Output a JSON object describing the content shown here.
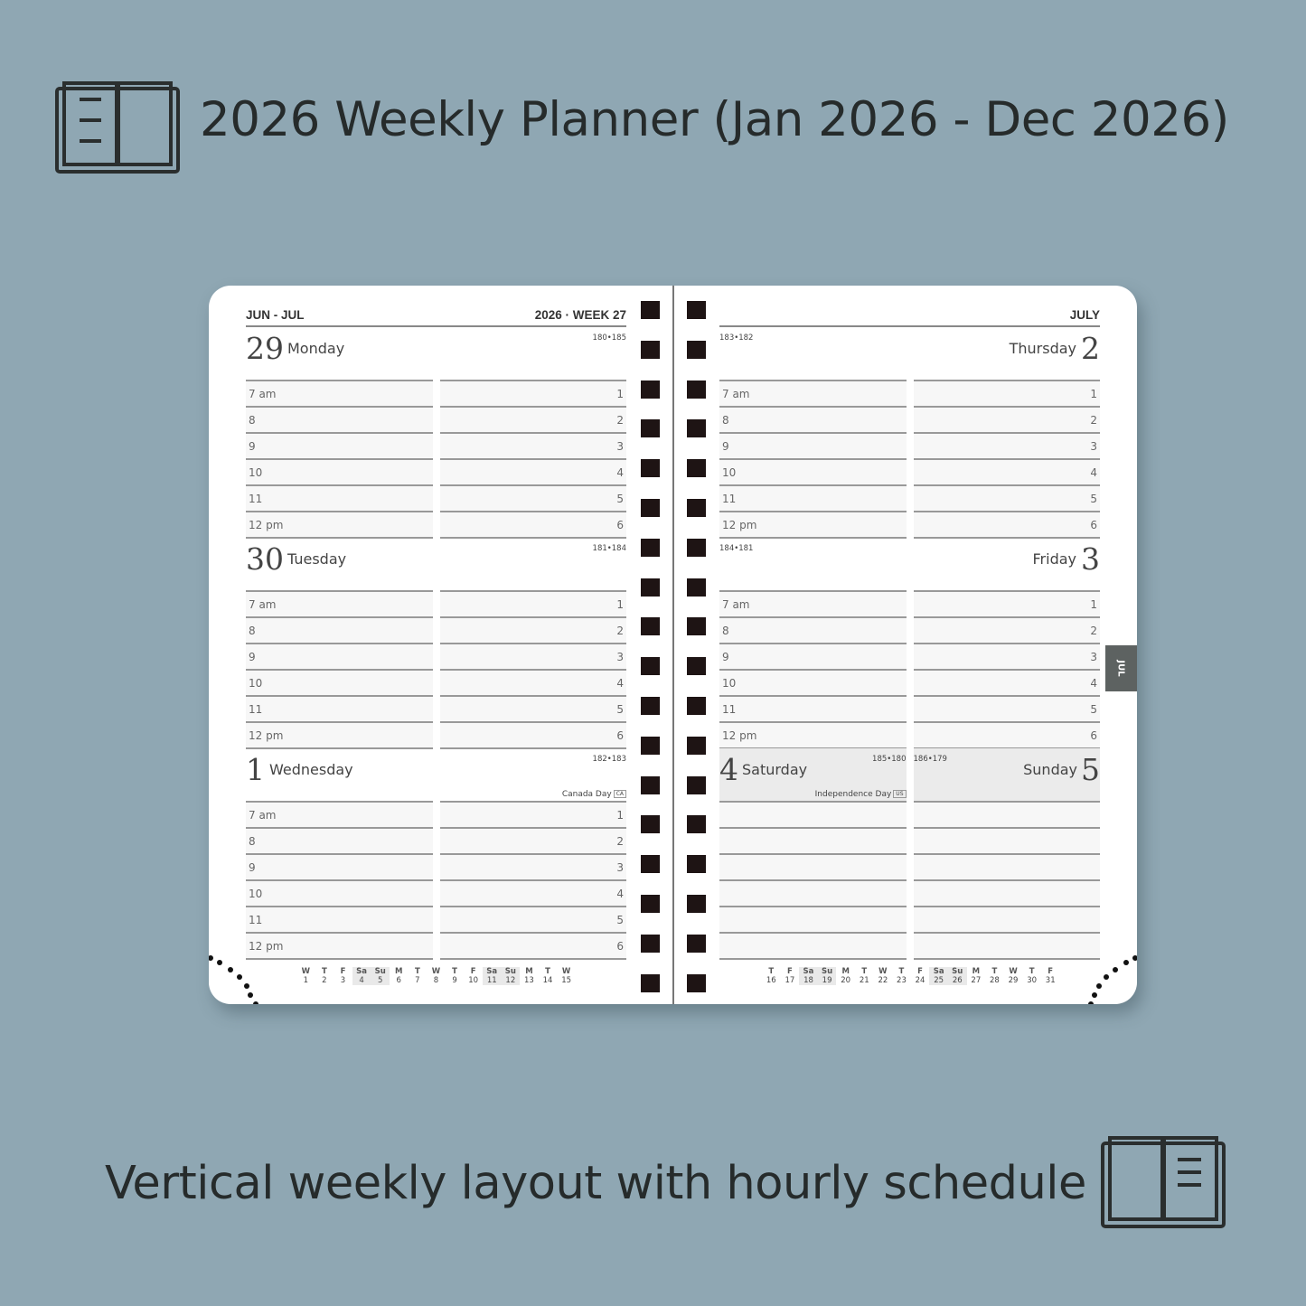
{
  "header": {
    "title": "2026 Weekly Planner (Jan 2026 - Dec 2026)",
    "icon": "open-book-icon"
  },
  "footer": {
    "caption": "Vertical weekly layout with hourly schedule",
    "icon": "open-book-icon"
  },
  "colors": {
    "background": "#8fa7b3",
    "tab": "#5d6261",
    "rings": "#1e1414"
  },
  "planner": {
    "left": {
      "months": "JUN - JUL",
      "week": "2026 · WEEK 27",
      "days": [
        {
          "num": "29",
          "name": "Monday",
          "doy": "180•185",
          "holiday": "",
          "holiday_tag": ""
        },
        {
          "num": "30",
          "name": "Tuesday",
          "doy": "181•184",
          "holiday": "",
          "holiday_tag": ""
        },
        {
          "num": "1",
          "name": "Wednesday",
          "doy": "182•183",
          "holiday": "Canada Day",
          "holiday_tag": "CA"
        }
      ],
      "mini_calendar": [
        [
          "W",
          "1"
        ],
        [
          "T",
          "2"
        ],
        [
          "F",
          "3"
        ],
        [
          "Sa",
          "4"
        ],
        [
          "Su",
          "5"
        ],
        [
          "M",
          "6"
        ],
        [
          "T",
          "7"
        ],
        [
          "W",
          "8"
        ],
        [
          "T",
          "9"
        ],
        [
          "F",
          "10"
        ],
        [
          "Sa",
          "11"
        ],
        [
          "Su",
          "12"
        ],
        [
          "M",
          "13"
        ],
        [
          "T",
          "14"
        ],
        [
          "W",
          "15"
        ]
      ]
    },
    "right": {
      "month": "JULY",
      "tab": "JUL",
      "days": [
        {
          "num": "2",
          "name": "Thursday",
          "doy": "183•182"
        },
        {
          "num": "3",
          "name": "Friday",
          "doy": "184•181"
        }
      ],
      "weekend": [
        {
          "num": "4",
          "name": "Saturday",
          "doy": "185•180",
          "holiday": "Independence Day",
          "holiday_tag": "US"
        },
        {
          "num": "5",
          "name": "Sunday",
          "doy": "186•179"
        }
      ],
      "mini_calendar": [
        [
          "T",
          "16"
        ],
        [
          "F",
          "17"
        ],
        [
          "Sa",
          "18"
        ],
        [
          "Su",
          "19"
        ],
        [
          "M",
          "20"
        ],
        [
          "T",
          "21"
        ],
        [
          "W",
          "22"
        ],
        [
          "T",
          "23"
        ],
        [
          "F",
          "24"
        ],
        [
          "Sa",
          "25"
        ],
        [
          "Su",
          "26"
        ],
        [
          "M",
          "27"
        ],
        [
          "T",
          "28"
        ],
        [
          "W",
          "29"
        ],
        [
          "T",
          "30"
        ],
        [
          "F",
          "31"
        ]
      ]
    },
    "hours": [
      "7 am",
      "8",
      "9",
      "10",
      "11",
      "12 pm"
    ],
    "slots": [
      "1",
      "2",
      "3",
      "4",
      "5",
      "6"
    ]
  }
}
